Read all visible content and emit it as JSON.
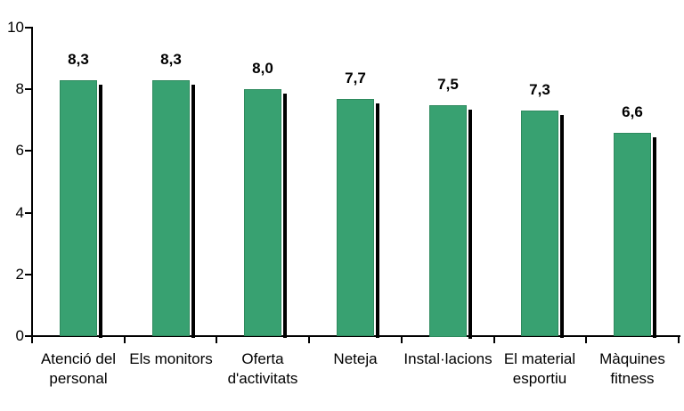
{
  "background_color": "#ffffff",
  "chart_data": {
    "type": "bar",
    "title": "",
    "xlabel": "",
    "ylabel": "",
    "categories": [
      "Atenció del personal",
      "Els monitors",
      "Oferta d'activitats",
      "Neteja",
      "Instal·lacions",
      "El material esportiu",
      "Màquines fitness"
    ],
    "category_label_lines": [
      [
        "Atenció del",
        "personal"
      ],
      [
        "Els monitors"
      ],
      [
        "Oferta",
        "d'activitats"
      ],
      [
        "Neteja"
      ],
      [
        "Instal·lacions"
      ],
      [
        "El material",
        "esportiu"
      ],
      [
        "Màquines",
        "fitness"
      ]
    ],
    "values": [
      8.3,
      8.3,
      8.0,
      7.7,
      7.5,
      7.3,
      6.6
    ],
    "value_labels": [
      "8,3",
      "8,3",
      "8,0",
      "7,7",
      "7,5",
      "7,3",
      "6,6"
    ],
    "ylim": [
      0,
      10
    ],
    "y_ticks": [
      0,
      2,
      4,
      6,
      8,
      10
    ],
    "y_tick_labels": [
      "0",
      "2",
      "4",
      "6",
      "8",
      "10"
    ],
    "grid": false,
    "legend": "none",
    "decimal_separator": ",",
    "bar_fill_color": "#38a171",
    "bar_border_color": "#2e8a5e",
    "bar_shadow_color": "#000000",
    "axis_color": "#000000",
    "text_color": "#000000"
  }
}
